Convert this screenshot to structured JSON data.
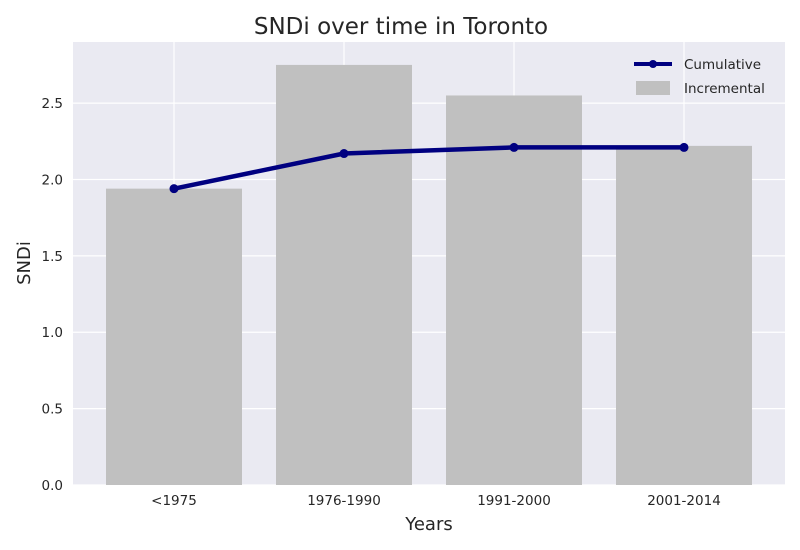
{
  "chart_data": {
    "type": "bar",
    "title": "SNDi over time in Toronto",
    "xlabel": "Years",
    "ylabel": "SNDi",
    "categories": [
      "<1975",
      "1976-1990",
      "1991-2000",
      "2001-2014"
    ],
    "ylim": [
      0,
      2.9
    ],
    "yticks": [
      "0.0",
      "0.5",
      "1.0",
      "1.5",
      "2.0",
      "2.5"
    ],
    "series": [
      {
        "name": "Incremental",
        "type": "bar",
        "color": "#c0c0c0",
        "values": [
          1.94,
          2.75,
          2.55,
          2.22
        ]
      },
      {
        "name": "Cumulative",
        "type": "line",
        "color": "#000080",
        "values": [
          1.94,
          2.17,
          2.21,
          2.21
        ]
      }
    ],
    "grid": true,
    "legend_position": "top-right",
    "background": "#eaeaf2"
  }
}
